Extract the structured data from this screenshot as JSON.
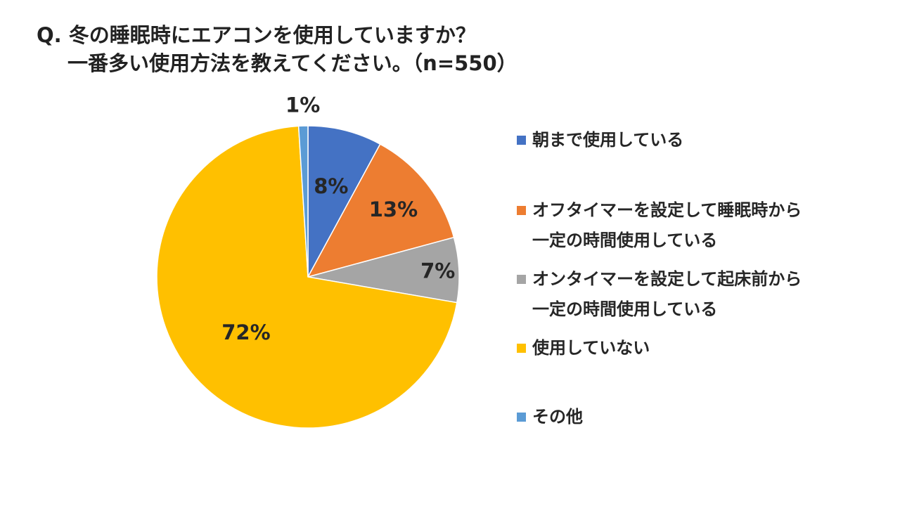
{
  "title": {
    "line1": "Q. 冬の睡眠時にエアコンを使用していますか？",
    "line2": "一番多い使用方法を教えてください。（n=550）"
  },
  "chart_data": {
    "type": "pie",
    "title": "Q. 冬の睡眠時にエアコンを使用していますか？ 一番多い使用方法を教えてください。（n=550）",
    "unit": "%",
    "start_angle_deg": 0,
    "direction": "clockwise",
    "legend_position": "right",
    "slices": [
      {
        "label": "朝まで使用している",
        "label_lines": [
          "朝まで使用している"
        ],
        "value": 8,
        "display": "8%",
        "color": "#4472C4"
      },
      {
        "label": "オフタイマーを設定して睡眠時から一定の時間使用している",
        "label_lines": [
          "オフタイマーを設定して睡眠時から",
          "一定の時間使用している"
        ],
        "value": 13,
        "display": "13%",
        "color": "#ED7D31"
      },
      {
        "label": "オンタイマーを設定して起床前から一定の時間使用している",
        "label_lines": [
          "オンタイマーを設定して起床前から",
          "一定の時間使用している"
        ],
        "value": 7,
        "display": "7%",
        "color": "#A5A5A5"
      },
      {
        "label": "使用していない",
        "label_lines": [
          "使用していない"
        ],
        "value": 72,
        "display": "72%",
        "color": "#FFC000"
      },
      {
        "label": "その他",
        "label_lines": [
          "その他"
        ],
        "value": 1,
        "display": "1%",
        "color": "#5B9BD5"
      }
    ]
  }
}
